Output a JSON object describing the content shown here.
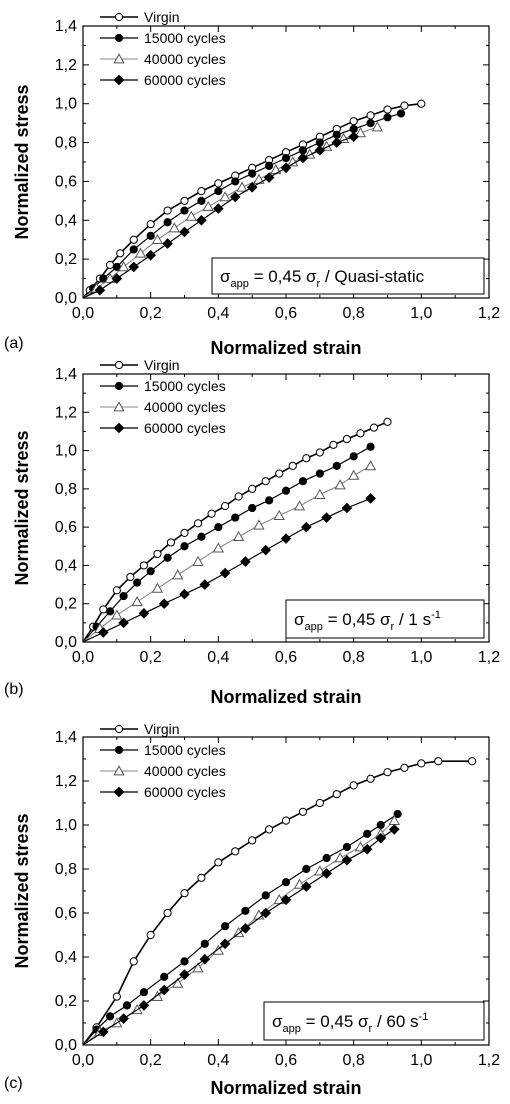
{
  "chart_data": [
    {
      "type": "line",
      "panel_label": "(a)",
      "xlabel": "Normalized strain",
      "ylabel": "Normalized stress",
      "xlim": [
        0.0,
        1.2
      ],
      "ylim": [
        0.0,
        1.4
      ],
      "xticks": [
        "0,0",
        "0,2",
        "0,4",
        "0,6",
        "0,8",
        "1,0",
        "1,2"
      ],
      "yticks": [
        "0,0",
        "0,2",
        "0,4",
        "0,6",
        "0,8",
        "1,0",
        "1,2",
        "1,4"
      ],
      "legend_position": "top-left",
      "annotation": {
        "main": "σ",
        "sub": "app",
        "eq": " = 0,45 σ",
        "r": "r",
        "tail": " / Quasi-static"
      },
      "series": [
        {
          "name": "Virgin",
          "marker": "open-circle",
          "x": [
            0.0,
            0.02,
            0.05,
            0.08,
            0.11,
            0.15,
            0.2,
            0.25,
            0.3,
            0.35,
            0.4,
            0.45,
            0.5,
            0.55,
            0.6,
            0.65,
            0.7,
            0.75,
            0.8,
            0.85,
            0.9,
            0.95,
            1.0
          ],
          "y": [
            0.0,
            0.04,
            0.1,
            0.17,
            0.23,
            0.3,
            0.38,
            0.45,
            0.5,
            0.55,
            0.59,
            0.63,
            0.67,
            0.71,
            0.75,
            0.79,
            0.83,
            0.87,
            0.91,
            0.94,
            0.97,
            0.99,
            1.0
          ]
        },
        {
          "name": "15000 cycles",
          "marker": "filled-circle",
          "x": [
            0.0,
            0.03,
            0.06,
            0.1,
            0.15,
            0.2,
            0.25,
            0.3,
            0.35,
            0.4,
            0.45,
            0.5,
            0.55,
            0.6,
            0.65,
            0.7,
            0.75,
            0.8,
            0.85,
            0.9,
            0.94
          ],
          "y": [
            0.0,
            0.05,
            0.1,
            0.16,
            0.25,
            0.32,
            0.39,
            0.45,
            0.5,
            0.55,
            0.6,
            0.64,
            0.68,
            0.72,
            0.76,
            0.8,
            0.84,
            0.87,
            0.9,
            0.93,
            0.95
          ]
        },
        {
          "name": "40000 cycles",
          "marker": "open-triangle",
          "x": [
            0.0,
            0.04,
            0.08,
            0.12,
            0.17,
            0.22,
            0.27,
            0.32,
            0.37,
            0.42,
            0.47,
            0.52,
            0.57,
            0.62,
            0.67,
            0.72,
            0.77,
            0.82,
            0.87
          ],
          "y": [
            0.0,
            0.05,
            0.1,
            0.16,
            0.23,
            0.3,
            0.36,
            0.42,
            0.47,
            0.52,
            0.57,
            0.61,
            0.66,
            0.7,
            0.74,
            0.78,
            0.82,
            0.85,
            0.88
          ]
        },
        {
          "name": "60000 cycles",
          "marker": "filled-diamond",
          "x": [
            0.0,
            0.05,
            0.1,
            0.15,
            0.2,
            0.25,
            0.3,
            0.35,
            0.4,
            0.45,
            0.5,
            0.55,
            0.6,
            0.65,
            0.7,
            0.75,
            0.8
          ],
          "y": [
            0.0,
            0.04,
            0.1,
            0.16,
            0.22,
            0.28,
            0.34,
            0.4,
            0.46,
            0.52,
            0.57,
            0.62,
            0.67,
            0.72,
            0.76,
            0.8,
            0.83
          ]
        }
      ]
    },
    {
      "type": "line",
      "panel_label": "(b)",
      "xlabel": "Normalized strain",
      "ylabel": "Normalized stress",
      "xlim": [
        0.0,
        1.2
      ],
      "ylim": [
        0.0,
        1.4
      ],
      "xticks": [
        "0,0",
        "0,2",
        "0,4",
        "0,6",
        "0,8",
        "1,0",
        "1,2"
      ],
      "yticks": [
        "0,0",
        "0,2",
        "0,4",
        "0,6",
        "0,8",
        "1,0",
        "1,2",
        "1,4"
      ],
      "legend_position": "top-left",
      "annotation": {
        "main": "σ",
        "sub": "app",
        "eq": " = 0,45 σ",
        "r": "r",
        "tail": " / 1 s",
        "sup": "-1"
      },
      "series": [
        {
          "name": "Virgin",
          "marker": "open-circle",
          "x": [
            0.0,
            0.03,
            0.06,
            0.1,
            0.14,
            0.18,
            0.22,
            0.26,
            0.3,
            0.34,
            0.38,
            0.42,
            0.46,
            0.5,
            0.54,
            0.58,
            0.62,
            0.66,
            0.7,
            0.74,
            0.78,
            0.82,
            0.86,
            0.9
          ],
          "y": [
            0.0,
            0.08,
            0.17,
            0.27,
            0.34,
            0.4,
            0.46,
            0.52,
            0.57,
            0.62,
            0.67,
            0.71,
            0.76,
            0.8,
            0.84,
            0.88,
            0.92,
            0.96,
            0.99,
            1.03,
            1.06,
            1.09,
            1.12,
            1.15
          ]
        },
        {
          "name": "15000 cycles",
          "marker": "filled-circle",
          "x": [
            0.0,
            0.04,
            0.08,
            0.12,
            0.16,
            0.2,
            0.25,
            0.3,
            0.35,
            0.4,
            0.45,
            0.5,
            0.55,
            0.6,
            0.65,
            0.7,
            0.75,
            0.8,
            0.85
          ],
          "y": [
            0.0,
            0.08,
            0.16,
            0.24,
            0.31,
            0.37,
            0.44,
            0.5,
            0.55,
            0.6,
            0.65,
            0.7,
            0.74,
            0.79,
            0.84,
            0.88,
            0.92,
            0.97,
            1.02
          ]
        },
        {
          "name": "40000 cycles",
          "marker": "open-triangle",
          "x": [
            0.0,
            0.05,
            0.1,
            0.16,
            0.22,
            0.28,
            0.34,
            0.4,
            0.46,
            0.52,
            0.58,
            0.64,
            0.7,
            0.76,
            0.8,
            0.85
          ],
          "y": [
            0.0,
            0.07,
            0.14,
            0.21,
            0.28,
            0.35,
            0.42,
            0.49,
            0.55,
            0.61,
            0.66,
            0.71,
            0.77,
            0.82,
            0.87,
            0.92
          ]
        },
        {
          "name": "60000 cycles",
          "marker": "filled-diamond",
          "x": [
            0.0,
            0.06,
            0.12,
            0.18,
            0.24,
            0.3,
            0.36,
            0.42,
            0.48,
            0.54,
            0.6,
            0.66,
            0.72,
            0.78,
            0.85
          ],
          "y": [
            0.0,
            0.05,
            0.1,
            0.15,
            0.2,
            0.25,
            0.3,
            0.36,
            0.42,
            0.48,
            0.54,
            0.6,
            0.65,
            0.7,
            0.75
          ]
        }
      ]
    },
    {
      "type": "line",
      "panel_label": "(c)",
      "xlabel": "Normalized strain",
      "ylabel": "Normalized stress",
      "xlim": [
        0.0,
        1.2
      ],
      "ylim": [
        0.0,
        1.4
      ],
      "xticks": [
        "0,0",
        "0,2",
        "0,4",
        "0,6",
        "0,8",
        "1,0",
        "1,2"
      ],
      "yticks": [
        "0,0",
        "0,2",
        "0,4",
        "0,6",
        "0,8",
        "1,0",
        "1,2",
        "1,4"
      ],
      "legend_position": "top-left",
      "annotation": {
        "main": "σ",
        "sub": "app",
        "eq": " = 0,45 σ",
        "r": "r",
        "tail": " / 60 s",
        "sup": "-1"
      },
      "series": [
        {
          "name": "Virgin",
          "marker": "open-circle",
          "x": [
            0.0,
            0.04,
            0.1,
            0.15,
            0.2,
            0.25,
            0.3,
            0.35,
            0.4,
            0.45,
            0.5,
            0.55,
            0.6,
            0.65,
            0.7,
            0.75,
            0.8,
            0.85,
            0.9,
            0.95,
            1.0,
            1.05,
            1.15
          ],
          "y": [
            0.0,
            0.08,
            0.22,
            0.38,
            0.5,
            0.6,
            0.69,
            0.76,
            0.83,
            0.88,
            0.93,
            0.98,
            1.02,
            1.06,
            1.1,
            1.14,
            1.18,
            1.21,
            1.24,
            1.26,
            1.28,
            1.29,
            1.29
          ]
        },
        {
          "name": "15000 cycles",
          "marker": "filled-circle",
          "x": [
            0.0,
            0.04,
            0.08,
            0.13,
            0.18,
            0.24,
            0.3,
            0.36,
            0.42,
            0.48,
            0.54,
            0.6,
            0.66,
            0.72,
            0.78,
            0.84,
            0.88,
            0.93
          ],
          "y": [
            0.0,
            0.07,
            0.13,
            0.18,
            0.24,
            0.31,
            0.38,
            0.46,
            0.54,
            0.61,
            0.68,
            0.74,
            0.8,
            0.85,
            0.9,
            0.96,
            1.0,
            1.05
          ]
        },
        {
          "name": "40000 cycles",
          "marker": "open-triangle",
          "x": [
            0.0,
            0.05,
            0.1,
            0.16,
            0.22,
            0.28,
            0.34,
            0.4,
            0.46,
            0.52,
            0.58,
            0.64,
            0.7,
            0.76,
            0.82,
            0.88,
            0.92
          ],
          "y": [
            0.0,
            0.06,
            0.1,
            0.16,
            0.22,
            0.28,
            0.35,
            0.43,
            0.51,
            0.59,
            0.66,
            0.73,
            0.79,
            0.85,
            0.9,
            0.96,
            1.02
          ]
        },
        {
          "name": "60000 cycles",
          "marker": "filled-diamond",
          "x": [
            0.0,
            0.06,
            0.12,
            0.18,
            0.24,
            0.3,
            0.36,
            0.42,
            0.48,
            0.54,
            0.6,
            0.66,
            0.72,
            0.78,
            0.84,
            0.88,
            0.92
          ],
          "y": [
            0.0,
            0.06,
            0.12,
            0.18,
            0.25,
            0.32,
            0.39,
            0.46,
            0.53,
            0.6,
            0.66,
            0.72,
            0.78,
            0.84,
            0.89,
            0.94,
            0.98
          ]
        }
      ]
    }
  ]
}
